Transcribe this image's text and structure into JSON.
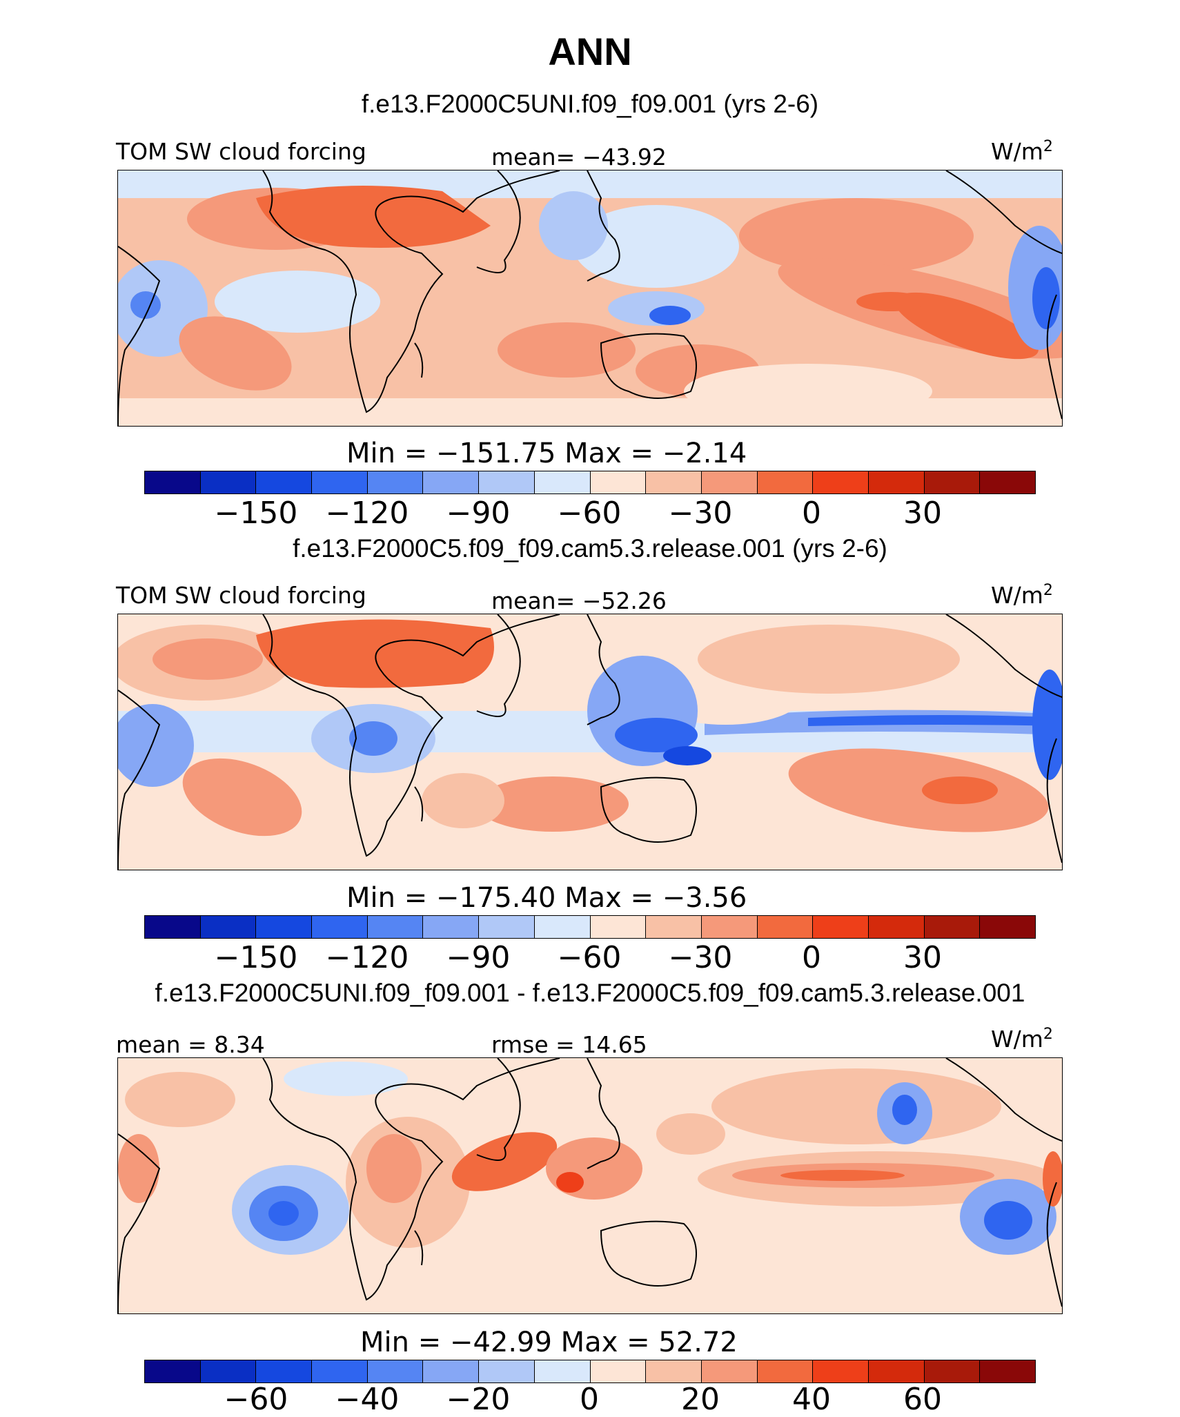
{
  "title": "ANN",
  "colors": [
    "#08088a",
    "#0a2fc4",
    "#1548e0",
    "#2f65f0",
    "#5585f3",
    "#86a7f5",
    "#b0c8f7",
    "#d9e8fb",
    "#fde5d6",
    "#f8c1a6",
    "#f5997a",
    "#f26a3e",
    "#ee3f19",
    "#d42a0c",
    "#a81a0a",
    "#8a0808"
  ],
  "panels": [
    {
      "case": "f.e13.F2000C5UNI.f09_f09.001 (yrs 2-6)",
      "left_label": "TOM SW cloud forcing",
      "center_label": "mean= −43.92",
      "units": "W/m",
      "units_sup": "2",
      "minmax": "Min = −151.75 Max = −2.14",
      "ticks": [
        "−150",
        "−120",
        "−90",
        "−60",
        "−30",
        "0",
        "30"
      ]
    },
    {
      "case": "f.e13.F2000C5.f09_f09.cam5.3.release.001 (yrs 2-6)",
      "left_label": "TOM SW cloud forcing",
      "center_label": "mean= −52.26",
      "units": "W/m",
      "units_sup": "2",
      "minmax": "Min = −175.40 Max = −3.56",
      "ticks": [
        "−150",
        "−120",
        "−90",
        "−60",
        "−30",
        "0",
        "30"
      ]
    },
    {
      "case": "f.e13.F2000C5UNI.f09_f09.001 - f.e13.F2000C5.f09_f09.cam5.3.release.001",
      "left_label": "mean =   8.34",
      "center_label": "rmse =  14.65",
      "units": "W/m",
      "units_sup": "2",
      "minmax": "Min = −42.99 Max =  52.72",
      "ticks": [
        "−60",
        "−40",
        "−20",
        "0",
        "20",
        "40",
        "60"
      ]
    }
  ]
}
